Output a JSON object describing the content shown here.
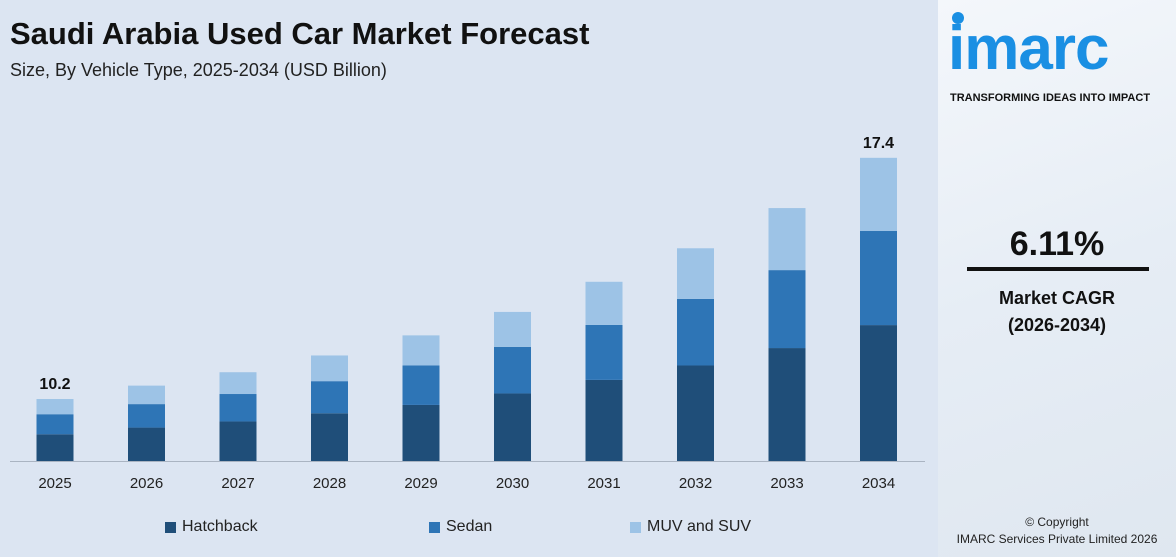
{
  "header": {
    "title": "Saudi Arabia Used Car Market Forecast",
    "subtitle": "Size, By Vehicle Type, 2025-2034 (USD Billion)"
  },
  "chart_data": {
    "type": "bar",
    "stacked": true,
    "title": "Saudi Arabia Used Car Market Forecast",
    "subtitle": "Size, By Vehicle Type, 2025-2034 (USD Billion)",
    "categories": [
      "2025",
      "2026",
      "2027",
      "2028",
      "2029",
      "2030",
      "2031",
      "2032",
      "2033",
      "2034"
    ],
    "series": [
      {
        "name": "Hatchback",
        "color": "#1f4e79",
        "values": [
          4.4,
          4.7,
          4.9,
          5.2,
          5.4,
          5.8,
          6.2,
          6.6,
          7.1,
          7.8
        ]
      },
      {
        "name": "Sedan",
        "color": "#2e75b6",
        "values": [
          3.3,
          3.3,
          3.4,
          3.5,
          3.8,
          4.0,
          4.2,
          4.6,
          4.9,
          5.4
        ]
      },
      {
        "name": "MUV and SUV",
        "color": "#9dc3e6",
        "values": [
          2.5,
          2.6,
          2.7,
          2.8,
          2.9,
          3.0,
          3.3,
          3.5,
          3.9,
          4.2
        ]
      }
    ],
    "data_labels": {
      "2025": "10.2",
      "2034": "17.4"
    },
    "legend_position": "bottom",
    "grid": false,
    "y_axis_visible": false
  },
  "side_panel": {
    "logo": "imarc",
    "tagline": "TRANSFORMING IDEAS INTO IMPACT",
    "cagr_value": "6.11%",
    "cagr_label": "Market CAGR",
    "cagr_period": "(2026-2034)",
    "copyright": "© Copyright",
    "company": "IMARC Services Private Limited 2026",
    "brand_color": "#1a8fe3"
  }
}
